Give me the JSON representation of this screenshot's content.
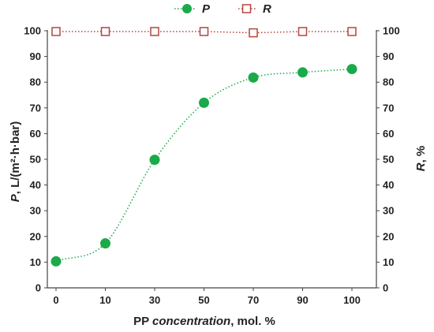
{
  "chart_data": {
    "type": "scatter",
    "x_categories": [
      "0",
      "10",
      "30",
      "50",
      "70",
      "90",
      "100"
    ],
    "series": [
      {
        "name": "P",
        "axis": "left",
        "marker": "filled-circle",
        "color": "#1aaa4a",
        "line": "dotted-smooth",
        "values": [
          10.3,
          17.3,
          49.8,
          72.0,
          81.8,
          83.8,
          85.1
        ]
      },
      {
        "name": "R",
        "axis": "right",
        "marker": "open-square",
        "color": "#b5453f",
        "line": "dotted",
        "values": [
          99.7,
          99.7,
          99.7,
          99.7,
          99.2,
          99.7,
          99.7
        ]
      }
    ],
    "xlabel_prefix": "PP ",
    "xlabel_italic": "concentration",
    "xlabel_suffix": ", mol. %",
    "ylabel_left_italic": "P",
    "ylabel_left_rest": ", L/(m²·h·bar)",
    "ylabel_right_italic": "R",
    "ylabel_right_rest": ", %",
    "ylim": [
      0,
      100
    ],
    "y2lim": [
      0,
      100
    ],
    "yticks": [
      "0",
      "10",
      "20",
      "30",
      "40",
      "50",
      "60",
      "70",
      "80",
      "90",
      "100"
    ],
    "grid": false,
    "legend_position": "top-center"
  }
}
